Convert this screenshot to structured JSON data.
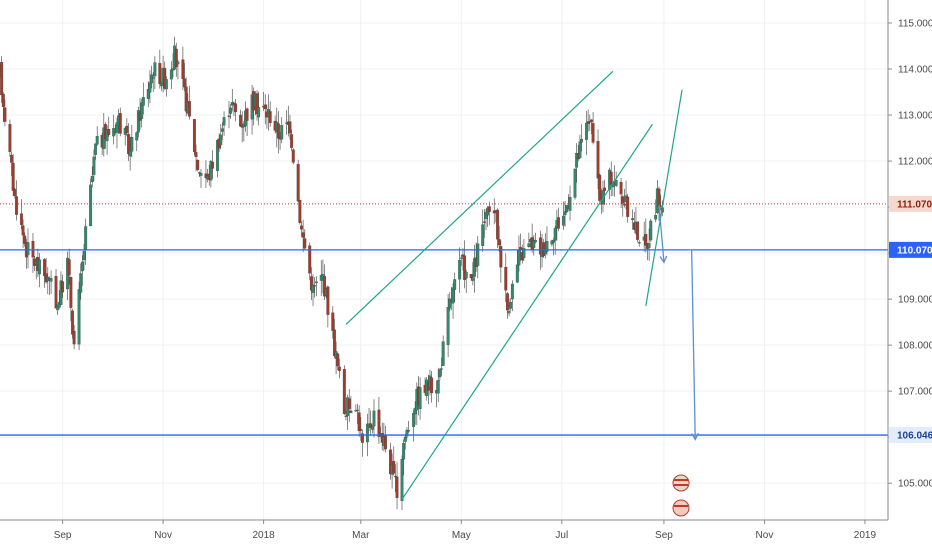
{
  "chart_data": {
    "type": "candlestick",
    "y_axis": {
      "range": [
        104.2,
        115.5
      ],
      "ticks": [
        "115.000",
        "114.000",
        "113.000",
        "112.000",
        "111.000",
        "110.000",
        "109.000",
        "108.000",
        "107.000",
        "106.000",
        "105.000"
      ]
    },
    "x_axis": {
      "range": [
        "2017-07-25",
        "2019-01-15"
      ],
      "ticks": [
        {
          "label": "Sep",
          "date": "2017-09-01"
        },
        {
          "label": "Nov",
          "date": "2017-11-01"
        },
        {
          "label": "2018",
          "date": "2018-01-01"
        },
        {
          "label": "Mar",
          "date": "2018-03-01"
        },
        {
          "label": "May",
          "date": "2018-05-01"
        },
        {
          "label": "Jul",
          "date": "2018-07-01"
        },
        {
          "label": "Sep",
          "date": "2018-09-01"
        },
        {
          "label": "Nov",
          "date": "2018-11-01"
        },
        {
          "label": "2019",
          "date": "2019-01-01"
        }
      ]
    },
    "price_labels": [
      {
        "text": "111.070",
        "value": 111.07,
        "bg": "#f6d8ce",
        "fg": "#8a1e0f",
        "line": "dotted",
        "line_color": "#c0392b"
      },
      {
        "text": "110.070",
        "value": 110.07,
        "bg": "#2962ff",
        "fg": "#ffffff",
        "line": "solid",
        "line_color": "#2962ff"
      },
      {
        "text": "106.046",
        "value": 106.046,
        "bg": "#e3ecfb",
        "fg": "#1e3f9c",
        "line": "solid",
        "line_color": "#2962ff"
      }
    ],
    "trend_lines": [
      {
        "name": "channel-upper",
        "start": [
          "2018-02-20",
          108.45
        ],
        "end": [
          "2018-08-01",
          113.95
        ]
      },
      {
        "name": "channel-lower",
        "start": [
          "2018-03-26",
          104.65
        ],
        "end": [
          "2018-08-25",
          112.8
        ]
      },
      {
        "name": "steep-line",
        "start": [
          "2018-08-21",
          108.85
        ],
        "end": [
          "2018-09-12",
          113.55
        ]
      }
    ],
    "arrows": [
      {
        "name": "arrow-short",
        "start": [
          "2018-08-29",
          111.05
        ],
        "end": [
          "2018-09-01",
          109.8
        ]
      },
      {
        "name": "arrow-target",
        "start": [
          "2018-09-16",
          110.07
        ],
        "end": [
          "2018-09-20",
          105.95
        ]
      }
    ],
    "waypoints": [
      [
        "2017-07-25",
        113.9
      ],
      [
        "2017-07-28",
        113.0
      ],
      [
        "2017-08-03",
        111.2
      ],
      [
        "2017-08-10",
        110.1
      ],
      [
        "2017-08-17",
        109.7
      ],
      [
        "2017-08-22",
        109.5
      ],
      [
        "2017-08-29",
        108.9
      ],
      [
        "2017-09-04",
        109.8
      ],
      [
        "2017-09-08",
        108.0
      ],
      [
        "2017-09-14",
        110.1
      ],
      [
        "2017-09-21",
        112.3
      ],
      [
        "2017-09-28",
        112.6
      ],
      [
        "2017-10-05",
        112.9
      ],
      [
        "2017-10-12",
        112.2
      ],
      [
        "2017-10-19",
        113.2
      ],
      [
        "2017-10-26",
        114.0
      ],
      [
        "2017-11-02",
        113.8
      ],
      [
        "2017-11-08",
        114.3
      ],
      [
        "2017-11-15",
        113.3
      ],
      [
        "2017-11-22",
        111.9
      ],
      [
        "2017-11-28",
        111.6
      ],
      [
        "2017-12-05",
        112.5
      ],
      [
        "2017-12-12",
        113.3
      ],
      [
        "2017-12-18",
        112.8
      ],
      [
        "2017-12-25",
        113.3
      ],
      [
        "2018-01-05",
        113.0
      ],
      [
        "2018-01-10",
        112.6
      ],
      [
        "2018-01-17",
        112.8
      ],
      [
        "2018-01-24",
        110.5
      ],
      [
        "2018-01-31",
        109.2
      ],
      [
        "2018-02-06",
        109.5
      ],
      [
        "2018-02-12",
        108.2
      ],
      [
        "2018-02-19",
        106.6
      ],
      [
        "2018-02-26",
        106.8
      ],
      [
        "2018-03-02",
        105.8
      ],
      [
        "2018-03-09",
        106.5
      ],
      [
        "2018-03-16",
        105.8
      ],
      [
        "2018-03-23",
        104.8
      ],
      [
        "2018-03-27",
        105.9
      ],
      [
        "2018-04-03",
        106.8
      ],
      [
        "2018-04-10",
        107.1
      ],
      [
        "2018-04-17",
        107.2
      ],
      [
        "2018-04-24",
        108.9
      ],
      [
        "2018-05-01",
        109.8
      ],
      [
        "2018-05-07",
        109.3
      ],
      [
        "2018-05-14",
        110.6
      ],
      [
        "2018-05-21",
        111.0
      ],
      [
        "2018-05-29",
        108.8
      ],
      [
        "2018-06-05",
        109.9
      ],
      [
        "2018-06-12",
        110.2
      ],
      [
        "2018-06-19",
        110.1
      ],
      [
        "2018-06-26",
        110.5
      ],
      [
        "2018-07-03",
        110.9
      ],
      [
        "2018-07-10",
        112.0
      ],
      [
        "2018-07-18",
        113.0
      ],
      [
        "2018-07-24",
        111.1
      ],
      [
        "2018-07-31",
        111.7
      ],
      [
        "2018-08-07",
        111.2
      ],
      [
        "2018-08-14",
        110.6
      ],
      [
        "2018-08-21",
        110.1
      ],
      [
        "2018-08-28",
        111.2
      ],
      [
        "2018-08-31",
        111.0
      ]
    ]
  }
}
